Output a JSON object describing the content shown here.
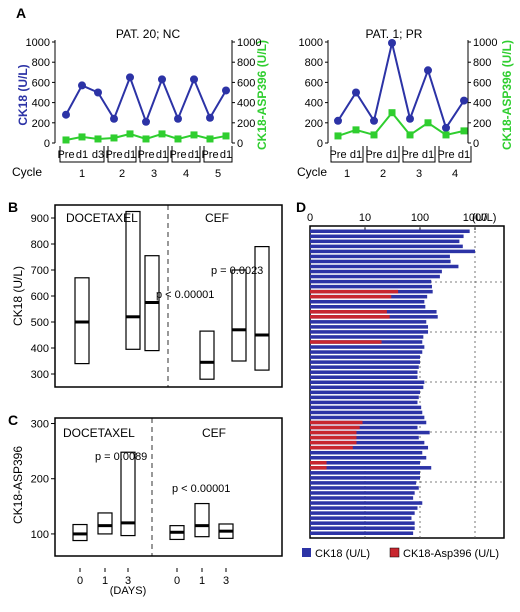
{
  "panel_letters": [
    "A",
    "B",
    "C",
    "D"
  ],
  "colors": {
    "ck18": "#2c33a6",
    "asp": "#2fce2f",
    "asp_bar": "#c8262f",
    "axis": "#000000"
  },
  "chart_data": [
    {
      "id": "A1",
      "type": "line",
      "title": "PAT. 20; NC",
      "ylabel": "CK18 (U/L)",
      "y2label": "CK18-ASP396 (U/L)",
      "ylim": [
        0,
        1000
      ],
      "y2lim": [
        0,
        1000
      ],
      "yticks": [
        "0",
        "200",
        "400",
        "600",
        "800",
        "1000"
      ],
      "y2ticks": [
        "0",
        "200",
        "400",
        "600",
        "800",
        "1000"
      ],
      "x": [
        "Pre",
        "d1",
        "d3",
        "Pre",
        "d1",
        "Pre",
        "d1",
        "Pre",
        "d1",
        "Pre",
        "d1"
      ],
      "cycle_label": "Cycle",
      "cycles": [
        {
          "label": "1",
          "span": [
            0,
            2
          ]
        },
        {
          "label": "2",
          "span": [
            3,
            4
          ]
        },
        {
          "label": "3",
          "span": [
            5,
            6
          ]
        },
        {
          "label": "4",
          "span": [
            7,
            8
          ]
        },
        {
          "label": "5",
          "span": [
            9,
            10
          ]
        }
      ],
      "series": [
        {
          "key": "ck18",
          "values": [
            280,
            570,
            500,
            240,
            650,
            210,
            630,
            240,
            630,
            250,
            520
          ]
        },
        {
          "key": "asp",
          "values": [
            30,
            60,
            40,
            50,
            90,
            40,
            90,
            40,
            80,
            40,
            70
          ]
        }
      ]
    },
    {
      "id": "A2",
      "type": "line",
      "title": "PAT. 1; PR",
      "ylabel": "",
      "y2label": "CK18-ASP396 (U/L)",
      "ylim": [
        0,
        1000
      ],
      "y2lim": [
        0,
        1000
      ],
      "yticks": [
        "0",
        "200",
        "400",
        "600",
        "800",
        "1000"
      ],
      "y2ticks": [
        "0",
        "200",
        "400",
        "600",
        "800",
        "1000"
      ],
      "x": [
        "Pre",
        "d1",
        "Pre",
        "d1",
        "Pre",
        "d1",
        "Pre",
        "d1"
      ],
      "cycle_label": "Cycle",
      "cycles": [
        {
          "label": "1",
          "span": [
            0,
            1
          ]
        },
        {
          "label": "2",
          "span": [
            2,
            3
          ]
        },
        {
          "label": "3",
          "span": [
            4,
            5
          ]
        },
        {
          "label": "4",
          "span": [
            6,
            7
          ]
        }
      ],
      "series": [
        {
          "key": "ck18",
          "values": [
            220,
            500,
            220,
            990,
            240,
            720,
            150,
            420
          ]
        },
        {
          "key": "asp",
          "values": [
            70,
            130,
            80,
            300,
            80,
            200,
            80,
            120
          ]
        }
      ]
    },
    {
      "id": "B",
      "type": "box",
      "ylabel": "CK18 (U/L)",
      "ylim": [
        250,
        950
      ],
      "yticks": [
        "300",
        "400",
        "500",
        "600",
        "700",
        "800",
        "900"
      ],
      "groups": [
        "DOCETAXEL",
        "CEF"
      ],
      "boxes": [
        {
          "group": "DOCETAXEL",
          "day": "0",
          "low": 340,
          "median": 500,
          "high": 670
        },
        {
          "group": "DOCETAXEL",
          "day": "1",
          "low": 395,
          "median": 520,
          "high": 925
        },
        {
          "group": "DOCETAXEL",
          "day": "3",
          "low": 390,
          "median": 575,
          "high": 755
        },
        {
          "group": "CEF",
          "day": "0",
          "low": 280,
          "median": 345,
          "high": 465
        },
        {
          "group": "CEF",
          "day": "1",
          "low": 350,
          "median": 470,
          "high": 700
        },
        {
          "group": "CEF",
          "day": "3",
          "low": 315,
          "median": 450,
          "high": 790
        }
      ],
      "annotations": [
        "p = 0.0023",
        "p < 0.00001"
      ]
    },
    {
      "id": "C",
      "type": "box",
      "ylabel": "CK18-ASP396",
      "ylim": [
        60,
        310
      ],
      "yticks": [
        "100",
        "200",
        "300"
      ],
      "groups": [
        "DOCETAXEL",
        "CEF"
      ],
      "xticks": [
        "0",
        "1",
        "3",
        "0",
        "1",
        "3"
      ],
      "xlabel": "(DAYS)",
      "boxes": [
        {
          "group": "DOCETAXEL",
          "day": "0",
          "low": 88,
          "median": 100,
          "high": 117
        },
        {
          "group": "DOCETAXEL",
          "day": "1",
          "low": 100,
          "median": 115,
          "high": 138
        },
        {
          "group": "DOCETAXEL",
          "day": "3",
          "low": 97,
          "median": 120,
          "high": 248
        },
        {
          "group": "CEF",
          "day": "0",
          "low": 90,
          "median": 103,
          "high": 115
        },
        {
          "group": "CEF",
          "day": "1",
          "low": 95,
          "median": 115,
          "high": 155
        },
        {
          "group": "CEF",
          "day": "3",
          "low": 92,
          "median": 105,
          "high": 118
        }
      ],
      "annotations": [
        "p = 0.0089",
        "p < 0.00001"
      ]
    },
    {
      "id": "D",
      "type": "bar",
      "orientation": "horizontal",
      "xscale": "log",
      "xticks": [
        "0",
        "10",
        "100",
        "1000"
      ],
      "xunit": "(U/L)",
      "legend": [
        "CK18 (U/L)",
        "CK18-Asp396 (U/L)"
      ],
      "ck18": [
        800,
        620,
        520,
        600,
        1000,
        350,
        360,
        500,
        250,
        230,
        160,
        165,
        170,
        135,
        120,
        125,
        200,
        210,
        130,
        140,
        140,
        115,
        110,
        120,
        110,
        100,
        100,
        95,
        90,
        90,
        120,
        115,
        100,
        95,
        90,
        105,
        110,
        120,
        130,
        90,
        150,
        95,
        120,
        140,
        110,
        130,
        100,
        160,
        100,
        100,
        85,
        95,
        80,
        75,
        110,
        90,
        80,
        70,
        80,
        80,
        75
      ],
      "asp396": [
        0,
        0,
        0,
        0,
        0,
        0,
        0,
        0,
        0,
        0,
        0,
        0,
        40,
        30,
        0,
        0,
        25,
        28,
        0,
        0,
        0,
        0,
        20,
        0,
        0,
        0,
        0,
        0,
        0,
        0,
        0,
        0,
        0,
        0,
        0,
        0,
        0,
        0,
        9,
        8,
        7,
        7,
        7,
        6,
        0,
        0,
        2,
        2,
        0,
        0,
        0,
        0,
        0,
        0,
        0,
        0,
        0,
        0,
        0,
        0,
        0
      ]
    }
  ]
}
